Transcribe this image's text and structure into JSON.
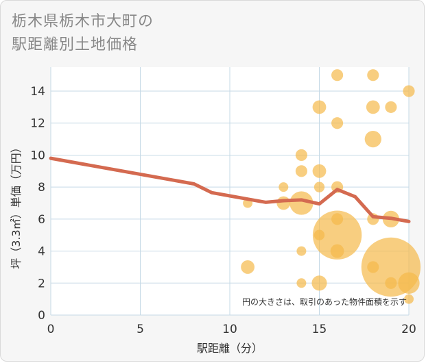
{
  "chart_data": {
    "type": "scatter",
    "title_lines": [
      "栃木県栃木市大町の",
      "駅距離別土地価格"
    ],
    "xlabel": "駅距離（分）",
    "ylabel": "坪（3.3㎡）単価（万円）",
    "xlim": [
      0,
      20
    ],
    "ylim": [
      0,
      15.5
    ],
    "xticks": [
      0,
      5,
      10,
      15,
      20
    ],
    "yticks": [
      0,
      2,
      4,
      6,
      8,
      10,
      12,
      14
    ],
    "grid": true,
    "note": "円の大きさは、取引のあった物件面積を示す",
    "colors": {
      "bubble": "#f5b94a",
      "line": "#d46a50",
      "grid": "#c5d9e6",
      "plot_bg": "#ffffff"
    },
    "bubbles": [
      {
        "x": 11,
        "y": 7,
        "size": 1
      },
      {
        "x": 11,
        "y": 3,
        "size": 2
      },
      {
        "x": 13,
        "y": 8,
        "size": 1
      },
      {
        "x": 13,
        "y": 7,
        "size": 2
      },
      {
        "x": 14,
        "y": 10,
        "size": 1.5
      },
      {
        "x": 14,
        "y": 9,
        "size": 1.5
      },
      {
        "x": 14,
        "y": 7,
        "size": 6
      },
      {
        "x": 14,
        "y": 4,
        "size": 1
      },
      {
        "x": 14,
        "y": 2,
        "size": 1
      },
      {
        "x": 15,
        "y": 13,
        "size": 2
      },
      {
        "x": 15,
        "y": 9,
        "size": 2
      },
      {
        "x": 15,
        "y": 8,
        "size": 1.2
      },
      {
        "x": 15,
        "y": 5,
        "size": 1.2
      },
      {
        "x": 15,
        "y": 2,
        "size": 2.5
      },
      {
        "x": 16,
        "y": 15,
        "size": 1.5
      },
      {
        "x": 16,
        "y": 12,
        "size": 1.5
      },
      {
        "x": 16,
        "y": 8,
        "size": 1.5
      },
      {
        "x": 16,
        "y": 6,
        "size": 1.5
      },
      {
        "x": 16,
        "y": 5,
        "size": 26
      },
      {
        "x": 16,
        "y": 4,
        "size": 2
      },
      {
        "x": 18,
        "y": 15,
        "size": 1.5
      },
      {
        "x": 18,
        "y": 13,
        "size": 2
      },
      {
        "x": 18,
        "y": 11,
        "size": 3
      },
      {
        "x": 18,
        "y": 6,
        "size": 1.5
      },
      {
        "x": 18,
        "y": 3,
        "size": 1.5
      },
      {
        "x": 19,
        "y": 13,
        "size": 1.5
      },
      {
        "x": 19,
        "y": 6,
        "size": 3
      },
      {
        "x": 19,
        "y": 3,
        "size": 38
      },
      {
        "x": 19,
        "y": 2,
        "size": 1.5
      },
      {
        "x": 20,
        "y": 14,
        "size": 1.5
      },
      {
        "x": 20,
        "y": 2,
        "size": 5
      },
      {
        "x": 20,
        "y": 1,
        "size": 1
      }
    ],
    "trend_line": {
      "x": [
        0,
        8,
        9,
        10,
        11,
        12,
        13,
        14,
        15,
        16,
        17,
        18,
        19,
        20
      ],
      "y": [
        9.8,
        8.2,
        7.65,
        7.45,
        7.25,
        7.05,
        7.15,
        7.2,
        6.95,
        7.85,
        7.4,
        6.15,
        6.05,
        5.85
      ]
    }
  }
}
